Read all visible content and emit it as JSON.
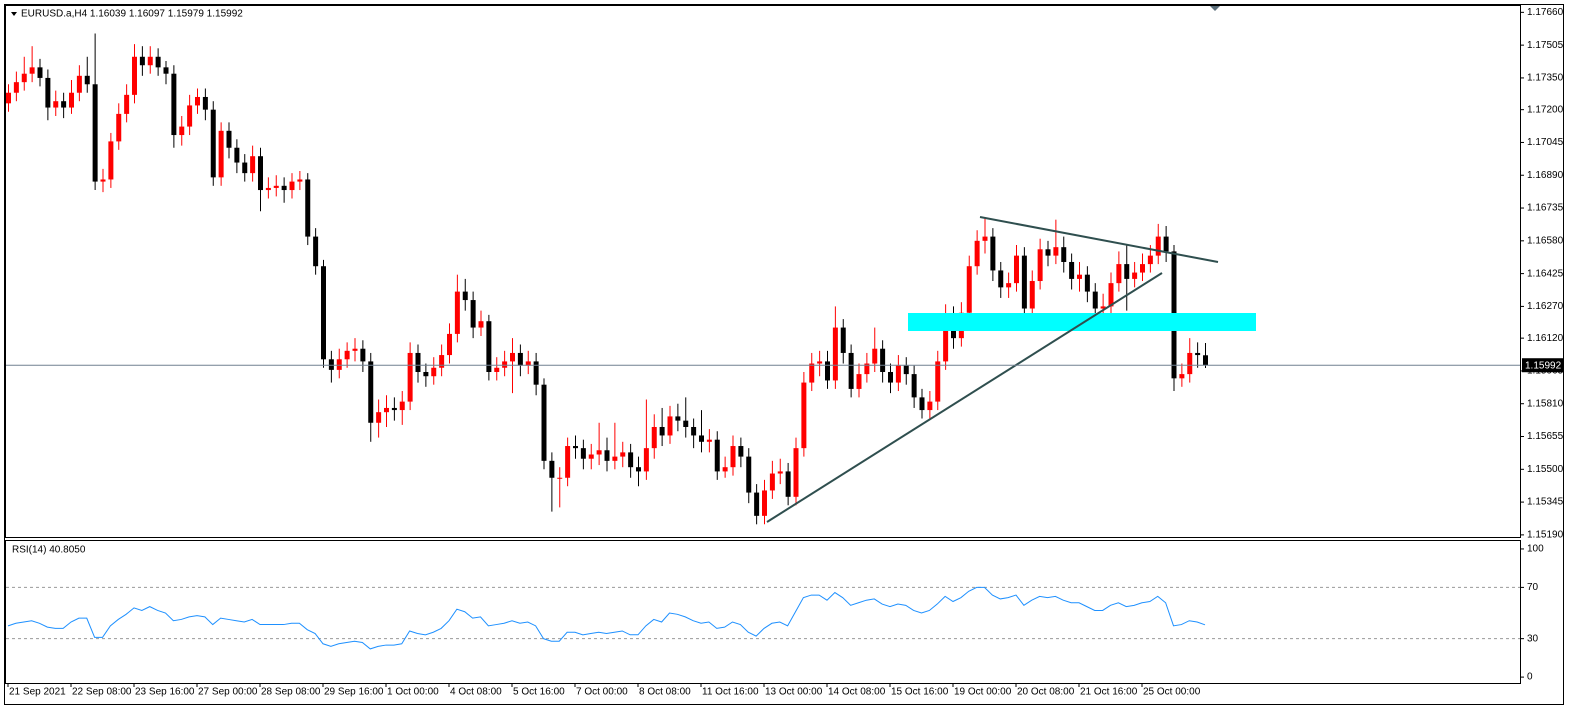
{
  "chart_data": [
    {
      "type": "candlestick",
      "title": "EURUSD.a,H4  1.16039 1.16097 1.15979 1.15992",
      "categories": [
        "21 Sep 2021",
        null,
        null,
        null,
        null,
        null,
        null,
        null,
        "22 Sep 08:00",
        null,
        null,
        null,
        null,
        null,
        null,
        null,
        "23 Sep 16:00",
        null,
        null,
        null,
        null,
        null,
        null,
        null,
        "27 Sep 00:00",
        null,
        null,
        null,
        null,
        null,
        null,
        null,
        "28 Sep 08:00",
        null,
        null,
        null,
        null,
        null,
        null,
        null,
        "29 Sep 16:00",
        null,
        null,
        null,
        null,
        null,
        null,
        null,
        "1 Oct 00:00",
        null,
        null,
        null,
        null,
        null,
        null,
        null,
        "4 Oct 08:00",
        null,
        null,
        null,
        null,
        null,
        null,
        null,
        "5 Oct 16:00",
        null,
        null,
        null,
        null,
        null,
        null,
        null,
        "7 Oct 00:00",
        null,
        null,
        null,
        null,
        null,
        null,
        null,
        "8 Oct 08:00",
        null,
        null,
        null,
        null,
        null,
        null,
        null,
        "11 Oct 16:00",
        null,
        null,
        null,
        null,
        null,
        null,
        null,
        "13 Oct 00:00",
        null,
        null,
        null,
        null,
        null,
        null,
        null,
        "14 Oct 08:00",
        null,
        null,
        null,
        null,
        null,
        null,
        null,
        "15 Oct 16:00",
        null,
        null,
        null,
        null,
        null,
        null,
        null,
        "19 Oct 00:00",
        null,
        null,
        null,
        null,
        null,
        null,
        null,
        "20 Oct 08:00",
        null,
        null,
        null,
        null,
        null,
        null,
        null,
        "21 Oct 16:00",
        null,
        null,
        null,
        null,
        null,
        null,
        null,
        "25 Oct 00:00",
        null,
        null,
        null,
        null,
        null,
        null,
        null,
        null
      ],
      "open": [
        1.1723,
        1.1728,
        1.1733,
        1.1737,
        1.174,
        1.1735,
        1.1721,
        1.1724,
        1.1721,
        1.1728,
        1.1736,
        1.1732,
        1.1686,
        1.1687,
        1.1705,
        1.1718,
        1.1727,
        1.1745,
        1.1741,
        1.1745,
        1.174,
        1.1737,
        1.1708,
        1.1712,
        1.1722,
        1.1726,
        1.172,
        1.1688,
        1.171,
        1.1702,
        1.1695,
        1.169,
        1.1698,
        1.1682,
        1.1683,
        1.1684,
        1.1682,
        1.1686,
        1.1687,
        1.166,
        1.1646,
        1.1602,
        1.1597,
        1.1602,
        1.1606,
        1.1607,
        1.1601,
        1.1572,
        1.1577,
        1.1579,
        1.1578,
        1.1582,
        1.1605,
        1.1596,
        1.1594,
        1.1598,
        1.1604,
        1.1614,
        1.1634,
        1.163,
        1.1617,
        1.162,
        1.1596,
        1.1598,
        1.1601,
        1.1605,
        1.1599,
        1.1601,
        1.159,
        1.1554,
        1.1546,
        1.1546,
        1.1561,
        1.156,
        1.1555,
        1.1557,
        1.1559,
        1.1554,
        1.1556,
        1.1558,
        1.1551,
        1.1549,
        1.156,
        1.157,
        1.1566,
        1.1575,
        1.1573,
        1.157,
        1.1566,
        1.1563,
        1.1564,
        1.1549,
        1.1551,
        1.1561,
        1.1556,
        1.1539,
        1.1528,
        1.154,
        1.1548,
        1.1549,
        1.1537,
        1.156,
        1.1591,
        1.16,
        1.1601,
        1.1592,
        1.1617,
        1.1605,
        1.1588,
        1.1595,
        1.16,
        1.1607,
        1.1596,
        1.1591,
        1.1599,
        1.1595,
        1.1584,
        1.1578,
        1.1582,
        1.1601,
        1.1623,
        1.1612,
        1.1624,
        1.1646,
        1.1658,
        1.166,
        1.1644,
        1.1636,
        1.1638,
        1.1651,
        1.1626,
        1.1639,
        1.1654,
        1.1651,
        1.1655,
        1.1648,
        1.164,
        1.1642,
        1.1634,
        1.1626,
        1.1627,
        1.1638,
        1.1647,
        1.164,
        1.1643,
        1.1647,
        1.1651,
        1.166,
        1.1653,
        1.1593,
        1.1595,
        1.1605,
        1.16039
      ],
      "high": [
        1.1732,
        1.1738,
        1.1745,
        1.175,
        1.1744,
        1.1739,
        1.1729,
        1.1728,
        1.1734,
        1.1741,
        1.1745,
        1.1756,
        1.1692,
        1.1709,
        1.1723,
        1.1732,
        1.1751,
        1.175,
        1.175,
        1.1749,
        1.1743,
        1.1741,
        1.1717,
        1.1727,
        1.173,
        1.173,
        1.1724,
        1.1714,
        1.1714,
        1.1706,
        1.1699,
        1.1703,
        1.1702,
        1.1688,
        1.1689,
        1.1688,
        1.169,
        1.1691,
        1.169,
        1.1664,
        1.1649,
        1.1606,
        1.1607,
        1.161,
        1.1612,
        1.1611,
        1.1605,
        1.1583,
        1.1585,
        1.1584,
        1.1587,
        1.161,
        1.1609,
        1.16,
        1.1603,
        1.1609,
        1.1619,
        1.1642,
        1.164,
        1.1634,
        1.1625,
        1.1623,
        1.1603,
        1.1606,
        1.1612,
        1.1609,
        1.1606,
        1.1605,
        1.1593,
        1.1558,
        1.1551,
        1.1565,
        1.1566,
        1.1564,
        1.1562,
        1.1572,
        1.1565,
        1.1572,
        1.1563,
        1.1562,
        1.1556,
        1.1583,
        1.1576,
        1.1579,
        1.158,
        1.1581,
        1.1584,
        1.1574,
        1.1578,
        1.1569,
        1.1568,
        1.1556,
        1.1566,
        1.1565,
        1.156,
        1.1543,
        1.1545,
        1.1554,
        1.1555,
        1.1553,
        1.1565,
        1.1596,
        1.1605,
        1.1606,
        1.1606,
        1.1627,
        1.1621,
        1.1609,
        1.16,
        1.1605,
        1.1617,
        1.1611,
        1.16,
        1.1604,
        1.1603,
        1.1599,
        1.1588,
        1.1587,
        1.1606,
        1.1628,
        1.1627,
        1.1629,
        1.1651,
        1.1663,
        1.1669,
        1.1664,
        1.1648,
        1.1643,
        1.1656,
        1.1655,
        1.1644,
        1.1659,
        1.1658,
        1.1668,
        1.166,
        1.1652,
        1.1648,
        1.1646,
        1.1638,
        1.1633,
        1.1643,
        1.1653,
        1.1656,
        1.1648,
        1.1652,
        1.1656,
        1.1666,
        1.1665,
        1.1656,
        1.16,
        1.1612,
        1.161,
        1.16097
      ],
      "low": [
        1.1719,
        1.1724,
        1.1729,
        1.1733,
        1.1731,
        1.1715,
        1.1717,
        1.1716,
        1.1718,
        1.1724,
        1.1728,
        1.1682,
        1.1681,
        1.1683,
        1.1701,
        1.1714,
        1.1723,
        1.1736,
        1.1737,
        1.1736,
        1.1732,
        1.1702,
        1.1703,
        1.1708,
        1.1718,
        1.1715,
        1.1684,
        1.1684,
        1.1697,
        1.169,
        1.1686,
        1.1686,
        1.1672,
        1.1678,
        1.1679,
        1.1676,
        1.1678,
        1.1682,
        1.1656,
        1.1642,
        1.1598,
        1.1591,
        1.1593,
        1.1598,
        1.1601,
        1.1596,
        1.1563,
        1.1565,
        1.157,
        1.1573,
        1.1571,
        1.1578,
        1.1591,
        1.1589,
        1.159,
        1.1594,
        1.16,
        1.161,
        1.1625,
        1.1612,
        1.1613,
        1.1592,
        1.1592,
        1.1594,
        1.1586,
        1.1594,
        1.1595,
        1.1585,
        1.155,
        1.153,
        1.1532,
        1.1542,
        1.1555,
        1.155,
        1.155,
        1.1552,
        1.1549,
        1.155,
        1.1551,
        1.1546,
        1.1542,
        1.1545,
        1.1555,
        1.1561,
        1.1562,
        1.1568,
        1.1565,
        1.156,
        1.1558,
        1.1558,
        1.1545,
        1.1546,
        1.1547,
        1.1551,
        1.1534,
        1.1524,
        1.1524,
        1.1536,
        1.1543,
        1.1533,
        1.1533,
        1.1556,
        1.1587,
        1.1594,
        1.1588,
        1.1588,
        1.16,
        1.1584,
        1.1584,
        1.1591,
        1.1596,
        1.1591,
        1.1586,
        1.1587,
        1.159,
        1.1579,
        1.1574,
        1.1574,
        1.1578,
        1.1597,
        1.1607,
        1.1608,
        1.162,
        1.1642,
        1.1652,
        1.1639,
        1.1631,
        1.1631,
        1.1634,
        1.1618,
        1.1622,
        1.1635,
        1.1646,
        1.1647,
        1.1643,
        1.1635,
        1.1634,
        1.1629,
        1.1622,
        1.1621,
        1.1623,
        1.1634,
        1.1625,
        1.1636,
        1.1639,
        1.1643,
        1.1647,
        1.1648,
        1.1587,
        1.1589,
        1.1591,
        1.1598,
        1.15979
      ],
      "close": [
        1.1728,
        1.1733,
        1.1737,
        1.174,
        1.1735,
        1.1721,
        1.1724,
        1.1721,
        1.1728,
        1.1736,
        1.1732,
        1.1686,
        1.1687,
        1.1705,
        1.1718,
        1.1727,
        1.1745,
        1.1741,
        1.1745,
        1.174,
        1.1737,
        1.1708,
        1.1712,
        1.1722,
        1.1726,
        1.172,
        1.1688,
        1.171,
        1.1702,
        1.1695,
        1.169,
        1.1698,
        1.1682,
        1.1683,
        1.1684,
        1.1682,
        1.1686,
        1.1687,
        1.166,
        1.1646,
        1.1602,
        1.1597,
        1.1602,
        1.1606,
        1.1607,
        1.1601,
        1.1572,
        1.1577,
        1.1579,
        1.1578,
        1.1582,
        1.1605,
        1.1596,
        1.1594,
        1.1598,
        1.1604,
        1.1614,
        1.1634,
        1.163,
        1.1617,
        1.162,
        1.1596,
        1.1598,
        1.1601,
        1.1605,
        1.1599,
        1.1601,
        1.159,
        1.1554,
        1.1546,
        1.1546,
        1.1561,
        1.156,
        1.1555,
        1.1557,
        1.1559,
        1.1554,
        1.1556,
        1.1558,
        1.1551,
        1.1549,
        1.156,
        1.157,
        1.1566,
        1.1575,
        1.1573,
        1.157,
        1.1566,
        1.1563,
        1.1564,
        1.1549,
        1.1551,
        1.1561,
        1.1556,
        1.1539,
        1.1528,
        1.154,
        1.1548,
        1.1549,
        1.1537,
        1.156,
        1.1591,
        1.16,
        1.1601,
        1.1592,
        1.1617,
        1.1605,
        1.1588,
        1.1595,
        1.16,
        1.1607,
        1.1596,
        1.1591,
        1.1599,
        1.1595,
        1.1584,
        1.1578,
        1.1582,
        1.1601,
        1.1623,
        1.1612,
        1.1624,
        1.1646,
        1.1658,
        1.166,
        1.1644,
        1.1636,
        1.1638,
        1.1651,
        1.1626,
        1.1639,
        1.1654,
        1.1651,
        1.1655,
        1.1648,
        1.164,
        1.1642,
        1.1634,
        1.1626,
        1.1627,
        1.1638,
        1.1647,
        1.164,
        1.1643,
        1.1647,
        1.1651,
        1.166,
        1.1653,
        1.1593,
        1.1595,
        1.1605,
        1.1604,
        1.15992
      ],
      "up_color": "#ff0000",
      "down_color": "#000000",
      "current_price": 1.15992,
      "ylim": [
        1.1518,
        1.1769
      ],
      "yticks": [
        {
          "value": 1.1766,
          "label": "1.17660"
        },
        1.17505,
        {
          "value": 1.1735,
          "label": "1.17350"
        },
        {
          "value": 1.172,
          "label": "1.17200"
        },
        1.17045,
        {
          "value": 1.1689,
          "label": "1.16890"
        },
        1.16735,
        {
          "value": 1.1658,
          "label": "1.16580"
        },
        1.16425,
        {
          "value": 1.1627,
          "label": "1.16270"
        },
        {
          "value": 1.1612,
          "label": "1.16120"
        },
        1.15965,
        {
          "value": 1.1581,
          "label": "1.15810"
        },
        1.15655,
        {
          "value": 1.155,
          "label": "1.15500"
        },
        1.15345,
        {
          "value": 1.1519,
          "label": "1.15190"
        }
      ]
    },
    {
      "type": "line",
      "title": "RSI(14) 40.8050",
      "color": "#1e90ff",
      "values": [
        40,
        42,
        43,
        44,
        42,
        39,
        38,
        38,
        43,
        46,
        46,
        31,
        31,
        40,
        45,
        49,
        54,
        52,
        55,
        52,
        50,
        44,
        45,
        47,
        48,
        47,
        41,
        46,
        45,
        44,
        43,
        45,
        41,
        41,
        41,
        41,
        42,
        42,
        37,
        34,
        26,
        24,
        26,
        27,
        28,
        27,
        22,
        24,
        25,
        25,
        26,
        36,
        34,
        33,
        35,
        38,
        44,
        53,
        51,
        46,
        47,
        40,
        41,
        42,
        44,
        42,
        43,
        40,
        30,
        28,
        28,
        35,
        35,
        33,
        34,
        35,
        34,
        35,
        36,
        33,
        33,
        40,
        45,
        43,
        50,
        49,
        47,
        44,
        42,
        43,
        38,
        39,
        43,
        41,
        35,
        32,
        38,
        42,
        43,
        40,
        51,
        62,
        64,
        64,
        60,
        66,
        62,
        56,
        58,
        60,
        61,
        57,
        55,
        57,
        56,
        52,
        50,
        52,
        57,
        63,
        59,
        62,
        67,
        70,
        70,
        64,
        61,
        62,
        64,
        56,
        60,
        63,
        62,
        63,
        60,
        58,
        58,
        55,
        52,
        52,
        56,
        58,
        55,
        56,
        58,
        59,
        63,
        58,
        40,
        41,
        44,
        43,
        40.805
      ],
      "levels": [
        70,
        30
      ],
      "ylim": [
        -4.6,
        106.2
      ],
      "yticks": [
        100,
        70,
        30,
        0
      ]
    }
  ]
}
